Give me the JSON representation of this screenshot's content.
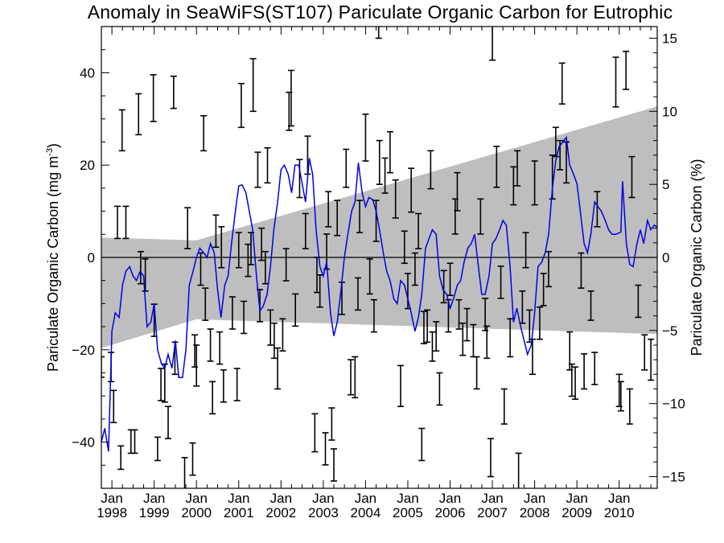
{
  "chart_data": {
    "type": "line",
    "title": "Anomaly in SeaWiFS(ST107) Pariculate Organic Carbon for Eutrophic",
    "ylabel_left": "Pariculate Organic Carbon (mg m",
    "ylabel_left_superscript": "-3",
    "ylabel_left_close": ")",
    "ylabel_right": "Pariculate Organic Carbon (%)",
    "xlim": [
      1997.75,
      2010.9
    ],
    "ylim_left": [
      -50,
      50
    ],
    "ylim_right": [
      -15.8,
      15.8
    ],
    "yticks_left": [
      -40,
      -20,
      0,
      20,
      40
    ],
    "yticks_right": [
      -15,
      -10,
      -5,
      0,
      5,
      10,
      15
    ],
    "xticks": [
      {
        "month": "Jan",
        "year": "1998",
        "x": 1998
      },
      {
        "month": "Jan",
        "year": "1999",
        "x": 1999
      },
      {
        "month": "Jan",
        "year": "2000",
        "x": 2000
      },
      {
        "month": "Jan",
        "year": "2001",
        "x": 2001
      },
      {
        "month": "Jan",
        "year": "2002",
        "x": 2002
      },
      {
        "month": "Jan",
        "year": "2003",
        "x": 2003
      },
      {
        "month": "Jan",
        "year": "2004",
        "x": 2004
      },
      {
        "month": "Jan",
        "year": "2005",
        "x": 2005
      },
      {
        "month": "Jan",
        "year": "2006",
        "x": 2006
      },
      {
        "month": "Jan",
        "year": "2007",
        "x": 2007
      },
      {
        "month": "Jan",
        "year": "2008",
        "x": 2008
      },
      {
        "month": "Jan",
        "year": "2009",
        "x": 2009
      },
      {
        "month": "Jan",
        "year": "2010",
        "x": 2010
      }
    ],
    "zero_line": 0,
    "band": {
      "color": "#bebebe",
      "upper": [
        [
          1997.75,
          4.3
        ],
        [
          2000.0,
          3.7
        ],
        [
          2010.9,
          32.7
        ]
      ],
      "lower": [
        [
          1997.75,
          -19.6
        ],
        [
          2000.0,
          -13.4
        ],
        [
          2010.9,
          -16.6
        ]
      ]
    },
    "series": [
      {
        "color": "#0000e6",
        "axis": "left",
        "x": [
          1997.75,
          1997.83,
          1997.92,
          1998.0,
          1998.08,
          1998.17,
          1998.25,
          1998.33,
          1998.42,
          1998.5,
          1998.58,
          1998.67,
          1998.75,
          1998.83,
          1998.92,
          1999.0,
          1999.08,
          1999.17,
          1999.25,
          1999.33,
          1999.42,
          1999.5,
          1999.58,
          1999.67,
          1999.75,
          1999.83,
          1999.92,
          2000.0,
          2000.08,
          2000.17,
          2000.25,
          2000.33,
          2000.42,
          2000.5,
          2000.58,
          2000.67,
          2000.75,
          2000.83,
          2000.92,
          2001.0,
          2001.08,
          2001.17,
          2001.25,
          2001.33,
          2001.42,
          2001.5,
          2001.58,
          2001.67,
          2001.75,
          2001.83,
          2001.92,
          2002.0,
          2002.08,
          2002.17,
          2002.25,
          2002.33,
          2002.42,
          2002.5,
          2002.58,
          2002.67,
          2002.75,
          2002.83,
          2002.92,
          2003.0,
          2003.08,
          2003.17,
          2003.25,
          2003.33,
          2003.42,
          2003.5,
          2003.58,
          2003.67,
          2003.75,
          2003.83,
          2003.92,
          2004.0,
          2004.08,
          2004.17,
          2004.25,
          2004.33,
          2004.42,
          2004.5,
          2004.58,
          2004.67,
          2004.75,
          2004.83,
          2004.92,
          2005.0,
          2005.08,
          2005.17,
          2005.25,
          2005.33,
          2005.42,
          2005.5,
          2005.58,
          2005.67,
          2005.75,
          2005.83,
          2005.92,
          2006.0,
          2006.08,
          2006.17,
          2006.25,
          2006.33,
          2006.42,
          2006.5,
          2006.58,
          2006.67,
          2006.75,
          2006.83,
          2006.92,
          2007.0,
          2007.08,
          2007.17,
          2007.25,
          2007.33,
          2007.42,
          2007.5,
          2007.58,
          2007.67,
          2007.75,
          2007.83,
          2007.92,
          2008.0,
          2008.08,
          2008.17,
          2008.25,
          2008.33,
          2008.42,
          2008.5,
          2008.58,
          2008.67,
          2008.75,
          2008.83,
          2008.92,
          2009.0,
          2009.08,
          2009.17,
          2009.25,
          2009.33,
          2009.42,
          2009.5,
          2009.58,
          2009.67,
          2009.75,
          2009.83,
          2009.92,
          2010.0,
          2010.04,
          2010.08,
          2010.17,
          2010.25,
          2010.33,
          2010.42,
          2010.5,
          2010.58,
          2010.67,
          2010.75,
          2010.83,
          2010.9
        ],
        "y": [
          -40,
          -37,
          -42,
          -16,
          -12,
          -13,
          -6,
          -3,
          -2,
          -4,
          -5,
          -3,
          -4,
          -15,
          -14,
          -10,
          -20,
          -23,
          -24,
          -21,
          -24,
          -18,
          -26,
          -26,
          -20,
          -6,
          -3,
          0,
          2,
          1,
          0,
          3,
          1,
          -7,
          -13,
          -6,
          -4,
          3,
          10,
          15.5,
          15.7,
          14,
          10,
          6,
          -4,
          -11.6,
          -10.5,
          -8,
          -2,
          6,
          12,
          19,
          20,
          18,
          14,
          20,
          20,
          16,
          12,
          21.5,
          18,
          6,
          -2,
          -4,
          -1,
          -12,
          -17,
          -14,
          -7,
          0,
          5,
          10,
          12,
          20.5,
          14,
          11,
          13,
          12.5,
          10,
          6,
          1,
          -3,
          -5,
          -9,
          -10,
          -5,
          -6,
          -9,
          -12,
          -16,
          -13,
          -8,
          2,
          4,
          6,
          5,
          -4,
          -7,
          -8,
          -11,
          -9,
          -6,
          -5,
          -1,
          2,
          3,
          5,
          -2,
          -8,
          -8,
          -4,
          3,
          4,
          6,
          8,
          7,
          -2,
          -14,
          -11,
          -15,
          -18,
          -21,
          -19,
          -12,
          -2,
          -1,
          1,
          5,
          15,
          21,
          24,
          25,
          26,
          20,
          18,
          16,
          10,
          3,
          1,
          5,
          12,
          11,
          10,
          8,
          6,
          5,
          5,
          5.3,
          5.5,
          16.5,
          3,
          -1.5,
          -2,
          3,
          6,
          3,
          8,
          6,
          7,
          6.5
        ]
      }
    ],
    "errorbars": {
      "color": "#000000",
      "axis": "right",
      "points": [
        [
          1997.75,
          -7.5,
          0.7
        ],
        [
          1997.98,
          -7.5,
          1.0
        ],
        [
          1998.04,
          -10.2,
          1.1
        ],
        [
          1998.13,
          2.4,
          1.1
        ],
        [
          1998.21,
          -13.7,
          0.8
        ],
        [
          1998.24,
          8.7,
          1.4
        ],
        [
          1998.33,
          2.4,
          1.1
        ],
        [
          1998.45,
          -12.6,
          0.8
        ],
        [
          1998.54,
          -12.6,
          0.8
        ],
        [
          1998.63,
          9.8,
          1.4
        ],
        [
          1998.68,
          -0.7,
          1.1
        ],
        [
          1998.79,
          -1.2,
          1.1
        ],
        [
          1998.98,
          10.9,
          1.6
        ],
        [
          1999.0,
          -4.3,
          1.1
        ],
        [
          1999.08,
          -13.1,
          0.8
        ],
        [
          1999.16,
          -8.7,
          1.1
        ],
        [
          1999.25,
          -8.6,
          1.3
        ],
        [
          1999.33,
          -11.3,
          1.1
        ],
        [
          1999.46,
          11.3,
          1.1
        ],
        [
          1999.49,
          -6.9,
          1.1
        ],
        [
          1999.72,
          -14.8,
          1.1
        ],
        [
          1999.79,
          2.0,
          1.4
        ],
        [
          1999.91,
          -13.8,
          1.1
        ],
        [
          1999.96,
          -6.4,
          1.1
        ],
        [
          2000.0,
          -7.4,
          1.4
        ],
        [
          2000.1,
          -0.8,
          1.1
        ],
        [
          2000.17,
          8.5,
          1.2
        ],
        [
          2000.21,
          -3.2,
          1.1
        ],
        [
          2000.33,
          -6.0,
          1.1
        ],
        [
          2000.38,
          -9.6,
          1.1
        ],
        [
          2000.46,
          1.8,
          1.1
        ],
        [
          2000.55,
          -6.2,
          1.1
        ],
        [
          2000.59,
          0.7,
          1.4
        ],
        [
          2000.64,
          -8.8,
          1.1
        ],
        [
          2000.85,
          -3.8,
          1.1
        ],
        [
          2000.96,
          -8.7,
          1.1
        ],
        [
          2001.0,
          0.5,
          1.2
        ],
        [
          2001.06,
          10.4,
          1.5
        ],
        [
          2001.12,
          -4.1,
          1.1
        ],
        [
          2001.22,
          -0.2,
          1.1
        ],
        [
          2001.29,
          0.6,
          1.1
        ],
        [
          2001.34,
          11.8,
          1.8
        ],
        [
          2001.45,
          6.0,
          1.2
        ],
        [
          2001.5,
          -3.3,
          1.1
        ],
        [
          2001.54,
          0.9,
          1.1
        ],
        [
          2001.63,
          -0.7,
          1.1
        ],
        [
          2001.68,
          6.3,
          1.2
        ],
        [
          2001.75,
          -4.8,
          1.2
        ],
        [
          2001.84,
          -5.7,
          1.2
        ],
        [
          2001.92,
          -7.6,
          1.4
        ],
        [
          2002.04,
          -5.3,
          1.1
        ],
        [
          2002.12,
          -0.5,
          1.1
        ],
        [
          2002.19,
          10.0,
          1.3
        ],
        [
          2002.24,
          10.9,
          1.9
        ],
        [
          2002.34,
          -3.6,
          1.1
        ],
        [
          2002.44,
          5.4,
          1.3
        ],
        [
          2002.58,
          1.8,
          1.2
        ],
        [
          2002.63,
          7.0,
          1.3
        ],
        [
          2002.8,
          -12.0,
          1.3
        ],
        [
          2002.85,
          -1.2,
          1.2
        ],
        [
          2002.92,
          -2.3,
          1.1
        ],
        [
          2003.05,
          -13.1,
          1.1
        ],
        [
          2003.08,
          0.4,
          1.2
        ],
        [
          2003.12,
          3.3,
          1.2
        ],
        [
          2003.2,
          -11.4,
          1.1
        ],
        [
          2003.25,
          -14.2,
          1.1
        ],
        [
          2003.33,
          2.7,
          1.2
        ],
        [
          2003.44,
          -2.8,
          1.1
        ],
        [
          2003.54,
          6.1,
          1.3
        ],
        [
          2003.65,
          -8.2,
          1.2
        ],
        [
          2003.75,
          -8.2,
          1.4
        ],
        [
          2003.82,
          -2.5,
          1.1
        ],
        [
          2003.86,
          2.8,
          1.1
        ],
        [
          2004.0,
          8.2,
          1.6
        ],
        [
          2004.1,
          -1.3,
          1.2
        ],
        [
          2004.2,
          -4.0,
          1.1
        ],
        [
          2004.25,
          2.5,
          1.4
        ],
        [
          2004.31,
          16.2,
          1.2
        ],
        [
          2004.33,
          6.5,
          1.5
        ],
        [
          2004.46,
          5.6,
          1.2
        ],
        [
          2004.58,
          7.2,
          1.4
        ],
        [
          2004.71,
          4.0,
          1.3
        ],
        [
          2004.83,
          -8.8,
          1.4
        ],
        [
          2004.92,
          0.7,
          1.1
        ],
        [
          2005.0,
          -2.3,
          1.2
        ],
        [
          2005.08,
          4.6,
          1.5
        ],
        [
          2005.17,
          -0.8,
          1.1
        ],
        [
          2005.25,
          1.8,
          1.2
        ],
        [
          2005.33,
          -12.8,
          1.1
        ],
        [
          2005.38,
          -4.8,
          1.1
        ],
        [
          2005.46,
          -4.7,
          1.1
        ],
        [
          2005.54,
          6.0,
          1.3
        ],
        [
          2005.58,
          -6.1,
          1.0
        ],
        [
          2005.67,
          -5.4,
          1.0
        ],
        [
          2005.75,
          -9.0,
          1.1
        ],
        [
          2005.85,
          -2.0,
          1.1
        ],
        [
          2005.96,
          -4.0,
          1.1
        ],
        [
          2006.0,
          -1.5,
          1.1
        ],
        [
          2006.12,
          2.8,
          1.2
        ],
        [
          2006.17,
          4.5,
          1.3
        ],
        [
          2006.21,
          -3.9,
          1.0
        ],
        [
          2006.3,
          -5.6,
          1.1
        ],
        [
          2006.4,
          -4.6,
          1.1
        ],
        [
          2006.55,
          -5.7,
          1.1
        ],
        [
          2006.63,
          -7.9,
          1.1
        ],
        [
          2006.72,
          2.8,
          1.2
        ],
        [
          2006.83,
          -3.9,
          1.1
        ],
        [
          2006.87,
          -5.8,
          1.1
        ],
        [
          2006.96,
          -13.7,
          1.3
        ],
        [
          2007.0,
          15.1,
          1.6
        ],
        [
          2007.1,
          6.2,
          1.4
        ],
        [
          2007.2,
          -1.7,
          1.1
        ],
        [
          2007.28,
          -10.2,
          1.2
        ],
        [
          2007.42,
          -5.5,
          1.3
        ],
        [
          2007.5,
          4.9,
          1.3
        ],
        [
          2007.59,
          6.1,
          1.2
        ],
        [
          2007.62,
          -14.7,
          1.3
        ],
        [
          2007.71,
          -3.4,
          1.1
        ],
        [
          2007.79,
          0.5,
          1.2
        ],
        [
          2007.88,
          -4.7,
          1.1
        ],
        [
          2007.95,
          -6.8,
          1.2
        ],
        [
          2008.0,
          5.1,
          1.5
        ],
        [
          2008.12,
          -4.5,
          1.1
        ],
        [
          2008.21,
          -2.2,
          1.1
        ],
        [
          2008.33,
          -0.8,
          1.2
        ],
        [
          2008.42,
          5.5,
          1.5
        ],
        [
          2008.5,
          7.9,
          1.0
        ],
        [
          2008.6,
          7.0,
          1.0
        ],
        [
          2008.65,
          11.9,
          1.4
        ],
        [
          2008.75,
          6.5,
          1.4
        ],
        [
          2008.83,
          -6.4,
          1.3
        ],
        [
          2008.88,
          -8.4,
          1.1
        ],
        [
          2008.96,
          -8.6,
          1.1
        ],
        [
          2009.1,
          -0.9,
          1.2
        ],
        [
          2009.17,
          -7.8,
          1.2
        ],
        [
          2009.33,
          -3.3,
          1.0
        ],
        [
          2009.42,
          -7.6,
          1.1
        ],
        [
          2009.48,
          3.3,
          1.2
        ],
        [
          2009.92,
          12.0,
          1.7
        ],
        [
          2010.0,
          -9.1,
          1.1
        ],
        [
          2010.04,
          -9.5,
          1.0
        ],
        [
          2010.16,
          12.8,
          1.3
        ],
        [
          2010.25,
          -10.2,
          1.2
        ],
        [
          2010.3,
          5.5,
          1.4
        ],
        [
          2010.45,
          -3.0,
          1.1
        ],
        [
          2010.6,
          -6.5,
          1.2
        ],
        [
          2010.75,
          -7.0,
          1.4
        ]
      ]
    }
  }
}
